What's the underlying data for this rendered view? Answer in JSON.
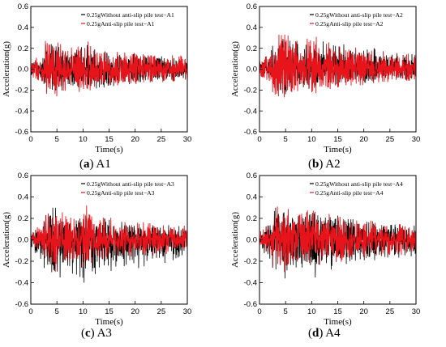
{
  "chart_data": [
    {
      "type": "line",
      "caption": {
        "letter": "a",
        "name": "A1"
      },
      "xlabel": "Time(s)",
      "ylabel": "Acceleration(g)",
      "xlim": [
        0,
        30
      ],
      "ylim": [
        -0.6,
        0.6
      ],
      "xticks": [
        0,
        5,
        10,
        15,
        20,
        25,
        30
      ],
      "yticks": [
        -0.6,
        -0.4,
        -0.2,
        0.0,
        0.2,
        0.4,
        0.6
      ],
      "legend_position": "top-right",
      "series": [
        {
          "name": "0.25gWithout anti-slip pile test−A1",
          "color": "#000000",
          "peak_positive": 0.24,
          "peak_negative": -0.22
        },
        {
          "name": "0.25gAnti-slip pile test−A1",
          "color": "#e8141c",
          "peak_positive": 0.27,
          "peak_negative": -0.26
        }
      ]
    },
    {
      "type": "line",
      "caption": {
        "letter": "b",
        "name": "A2"
      },
      "xlabel": "Time(s)",
      "ylabel": "Acceleration(g)",
      "xlim": [
        0,
        30
      ],
      "ylim": [
        -0.6,
        0.6
      ],
      "xticks": [
        0,
        5,
        10,
        15,
        20,
        25,
        30
      ],
      "yticks": [
        -0.6,
        -0.4,
        -0.2,
        0.0,
        0.2,
        0.4,
        0.6
      ],
      "legend_position": "top-right",
      "series": [
        {
          "name": "0.25gWithout anti-slip pile test−A2",
          "color": "#000000",
          "peak_positive": 0.29,
          "peak_negative": -0.24
        },
        {
          "name": "0.25gAnti-slip pile test−A2",
          "color": "#e8141c",
          "peak_positive": 0.33,
          "peak_negative": -0.27
        }
      ]
    },
    {
      "type": "line",
      "caption": {
        "letter": "c",
        "name": "A3"
      },
      "xlabel": "Time(s)",
      "ylabel": "Acceleration(g)",
      "xlim": [
        0,
        30
      ],
      "ylim": [
        -0.6,
        0.6
      ],
      "xticks": [
        0,
        5,
        10,
        15,
        20,
        25,
        30
      ],
      "yticks": [
        -0.6,
        -0.4,
        -0.2,
        0.0,
        0.2,
        0.4,
        0.6
      ],
      "legend_position": "top-right",
      "series": [
        {
          "name": "0.25gWithout anti-slip pile test−A3",
          "color": "#000000",
          "peak_positive": 0.3,
          "peak_negative": -0.4
        },
        {
          "name": "0.25gAnti-slip pile test−A3",
          "color": "#e8141c",
          "peak_positive": 0.32,
          "peak_negative": -0.3
        }
      ]
    },
    {
      "type": "line",
      "caption": {
        "letter": "d",
        "name": "A4"
      },
      "xlabel": "Time(s)",
      "ylabel": "Acceleration(g)",
      "xlim": [
        0,
        30
      ],
      "ylim": [
        -0.6,
        0.6
      ],
      "xticks": [
        0,
        5,
        10,
        15,
        20,
        25,
        30
      ],
      "yticks": [
        -0.6,
        -0.4,
        -0.2,
        0.0,
        0.2,
        0.4,
        0.6
      ],
      "legend_position": "top-right",
      "series": [
        {
          "name": "0.25gWithout anti-slip pile test−A4",
          "color": "#000000",
          "peak_positive": 0.3,
          "peak_negative": -0.36
        },
        {
          "name": "0.25gAnti-slip pile test−A4",
          "color": "#e8141c",
          "peak_positive": 0.31,
          "peak_negative": -0.3
        }
      ]
    }
  ]
}
